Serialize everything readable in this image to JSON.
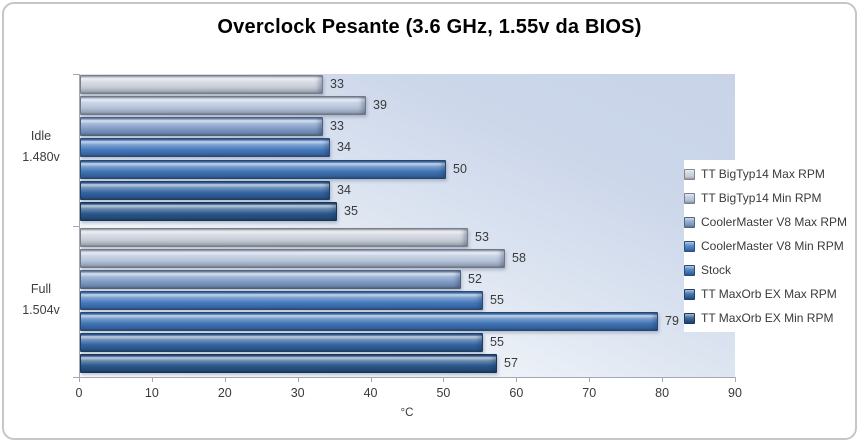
{
  "title": "Overclock Pesante (3.6 GHz, 1.55v da BIOS)",
  "chart_data": {
    "type": "bar",
    "orientation": "horizontal",
    "title": "Overclock Pesante (3.6 GHz, 1.55v da BIOS)",
    "xlabel": "°C",
    "xlim": [
      0,
      90
    ],
    "x_ticks": [
      0,
      10,
      20,
      30,
      40,
      50,
      60,
      70,
      80,
      90
    ],
    "grid": false,
    "legend_position": "right",
    "categories": [
      "Idle 1.480v",
      "Full 1.504v"
    ],
    "category_lines": [
      [
        "Idle",
        "1.480v"
      ],
      [
        "Full",
        "1.504v"
      ]
    ],
    "series": [
      {
        "name": "TT BigTyp14 Max RPM",
        "values": [
          33,
          53
        ],
        "color": "#c7cdd8"
      },
      {
        "name": "TT BigTyp14 Min RPM",
        "values": [
          39,
          58
        ],
        "color": "#b4c2d9"
      },
      {
        "name": "CoolerMaster V8 Max RPM",
        "values": [
          33,
          52
        ],
        "color": "#7e9bc6"
      },
      {
        "name": "CoolerMaster V8 Min RPM",
        "values": [
          34,
          55
        ],
        "color": "#4478bc"
      },
      {
        "name": "Stock",
        "values": [
          50,
          79
        ],
        "color": "#3d72b4"
      },
      {
        "name": "TT MaxOrb EX Max RPM",
        "values": [
          34,
          55
        ],
        "color": "#32639f"
      },
      {
        "name": "TT MaxOrb EX Min RPM",
        "values": [
          35,
          57
        ],
        "color": "#29568b"
      }
    ]
  },
  "colors": {
    "frame_border": "#c6c6c6",
    "axis_line": "#a3a9b3",
    "axis_text": "#3a3a3a",
    "title_text": "#000000",
    "plot_bg_start": "#ffffff",
    "plot_bg_end": "#c8d3e8"
  }
}
